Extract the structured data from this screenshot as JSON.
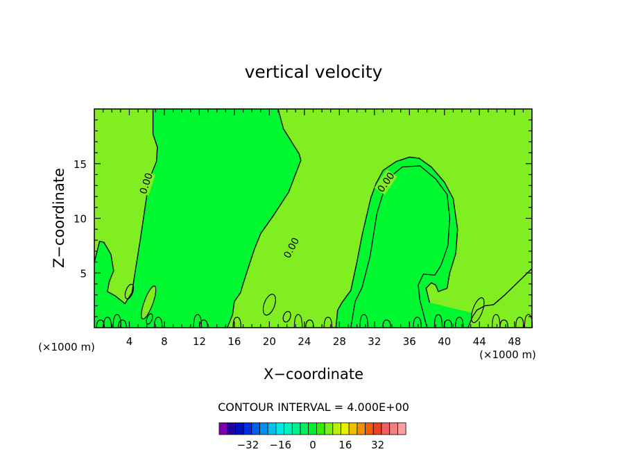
{
  "chart_data": {
    "type": "contour",
    "title": "vertical velocity",
    "xlabel": "X−coordinate",
    "ylabel": "Z−coordinate",
    "x_unit_left": "(×1000 m)",
    "x_unit_right": "(×1000 m)",
    "xlim": [
      0,
      50
    ],
    "ylim": [
      0,
      20
    ],
    "x_ticks": [
      {
        "value": 4,
        "label": "4"
      },
      {
        "value": 8,
        "label": "8"
      },
      {
        "value": 12,
        "label": "12"
      },
      {
        "value": 16,
        "label": "16"
      },
      {
        "value": 20,
        "label": "20"
      },
      {
        "value": 24,
        "label": "24"
      },
      {
        "value": 28,
        "label": "28"
      },
      {
        "value": 32,
        "label": "32"
      },
      {
        "value": 36,
        "label": "36"
      },
      {
        "value": 40,
        "label": "40"
      },
      {
        "value": 44,
        "label": "44"
      },
      {
        "value": 48,
        "label": "48"
      }
    ],
    "y_ticks": [
      {
        "value": 5,
        "label": "5"
      },
      {
        "value": 10,
        "label": "10"
      },
      {
        "value": 15,
        "label": "15"
      }
    ],
    "contour_interval_text": "CONTOUR INTERVAL = 4.000E+00",
    "contour_labels": [
      {
        "text": "0.00",
        "x": 5.9,
        "z": 13.2
      },
      {
        "text": "0.00",
        "x": 22.5,
        "z": 7.3
      },
      {
        "text": "0.00",
        "x": 33.3,
        "z": 13.3
      }
    ],
    "zero_contours": [
      {
        "name": "left-upward-region",
        "points": [
          [
            0,
            6
          ],
          [
            0.6,
            7.9
          ],
          [
            1.1,
            7.8
          ],
          [
            1.9,
            6.7
          ],
          [
            2.2,
            5.2
          ],
          [
            1.7,
            4.2
          ],
          [
            1.5,
            3.3
          ],
          [
            2.4,
            2.9
          ],
          [
            3.5,
            2.2
          ],
          [
            4.3,
            3.2
          ],
          [
            4.6,
            4.8
          ],
          [
            5.3,
            8.3
          ],
          [
            6.0,
            12.1
          ],
          [
            6.5,
            14.0
          ],
          [
            7.1,
            15.2
          ],
          [
            7.2,
            16.5
          ],
          [
            6.7,
            17.7
          ],
          [
            6.7,
            20
          ]
        ]
      },
      {
        "name": "center-upward-region",
        "points": [
          [
            21.0,
            20
          ],
          [
            21.6,
            18.2
          ],
          [
            23.4,
            15.9
          ],
          [
            23.6,
            15.3
          ],
          [
            22.2,
            12.4
          ],
          [
            20.5,
            10.3
          ],
          [
            19.0,
            8.6
          ],
          [
            18.3,
            7.2
          ],
          [
            17.6,
            5.5
          ],
          [
            17.0,
            4.0
          ],
          [
            16.7,
            3.2
          ],
          [
            16.0,
            2.4
          ],
          [
            15.8,
            1.2
          ],
          [
            15.2,
            0
          ]
        ]
      },
      {
        "name": "right-upward-region",
        "points": [
          [
            27.6,
            0
          ],
          [
            27.8,
            1.6
          ],
          [
            28.3,
            2.3
          ],
          [
            29.3,
            3.4
          ],
          [
            30.0,
            6.0
          ],
          [
            30.6,
            8.5
          ],
          [
            31.6,
            11.9
          ],
          [
            32.2,
            13.2
          ],
          [
            33.0,
            14.4
          ],
          [
            34.5,
            15.2
          ],
          [
            36.0,
            15.6
          ],
          [
            37.1,
            15.5
          ],
          [
            38.5,
            14.7
          ],
          [
            40.0,
            13.3
          ],
          [
            41.0,
            11.8
          ],
          [
            41.5,
            9.0
          ],
          [
            41.3,
            6.8
          ],
          [
            40.6,
            5.0
          ],
          [
            40.3,
            3.6
          ],
          [
            39.3,
            3.3
          ],
          [
            39.0,
            3.9
          ],
          [
            38.5,
            4.1
          ],
          [
            37.9,
            3.6
          ],
          [
            38.3,
            2.3
          ]
        ]
      },
      {
        "name": "right-edge-region",
        "points": [
          [
            50,
            5.4
          ],
          [
            48.7,
            4.4
          ],
          [
            46.9,
            3.0
          ],
          [
            45.6,
            2.1
          ],
          [
            44.6,
            2.0
          ],
          [
            43.7,
            1.6
          ],
          [
            43.2,
            1.0
          ],
          [
            42.7,
            0
          ]
        ]
      }
    ],
    "closed_cells": [
      {
        "cx": 4.0,
        "cz": 3.3,
        "rx": 0.4,
        "rz": 0.7,
        "fill": "none"
      },
      {
        "cx": 6.2,
        "cz": 2.3,
        "rx": 0.5,
        "rz": 1.6,
        "fill": "#80ee20"
      },
      {
        "cx": 43.8,
        "cz": 1.6,
        "rx": 0.55,
        "rz": 1.2,
        "fill": "#80ee20"
      },
      {
        "cx": 6.3,
        "cz": 0.8,
        "rx": 0.3,
        "rz": 0.5,
        "fill": "none"
      },
      {
        "cx": 20.0,
        "cz": 2.1,
        "rx": 0.6,
        "rz": 1.0,
        "fill": "none"
      },
      {
        "cx": 22.0,
        "cz": 1.0,
        "rx": 0.4,
        "rz": 0.5,
        "fill": "none"
      }
    ],
    "bottom_plumes": [
      0.7,
      1.5,
      2.6,
      3.2,
      7.3,
      11.8,
      12.5,
      16.3,
      23.3,
      24.6,
      26.7,
      30.8,
      33.4,
      36.9,
      39.3,
      40.4,
      41.7,
      45.9,
      46.8,
      48.6,
      49.6
    ],
    "colorbar": {
      "colors": [
        "#8000b0",
        "#2000a0",
        "#0010c0",
        "#0030e0",
        "#0060f0",
        "#0090f0",
        "#00c0f0",
        "#00e8e8",
        "#00f0c0",
        "#00f090",
        "#00f060",
        "#00f030",
        "#30f000",
        "#80ee20",
        "#b8f010",
        "#e8f000",
        "#f0c000",
        "#f09000",
        "#f06000",
        "#f04020",
        "#f06060",
        "#f08080",
        "#f8a0a0"
      ],
      "tick_values": [
        -32,
        -16,
        0,
        16,
        32
      ],
      "tick_labels": [
        "−32",
        "−16",
        "0",
        "16",
        "32"
      ]
    }
  }
}
